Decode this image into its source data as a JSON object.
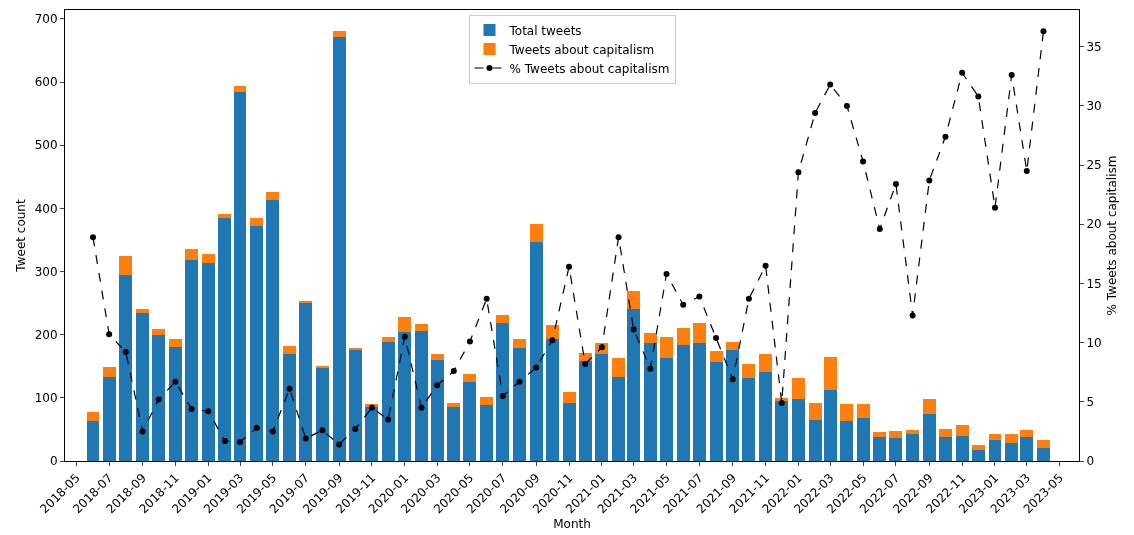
{
  "chart_data": {
    "type": "bar",
    "stacked": true,
    "xlabel": "Month",
    "ylabel": "Tweet count",
    "y2label": "% Tweets about capitalism",
    "x": [
      "2018-06",
      "2018-07",
      "2018-08",
      "2018-09",
      "2018-10",
      "2018-11",
      "2018-12",
      "2019-01",
      "2019-02",
      "2019-03",
      "2019-04",
      "2019-05",
      "2019-06",
      "2019-07",
      "2019-08",
      "2019-09",
      "2019-10",
      "2019-11",
      "2019-12",
      "2020-01",
      "2020-02",
      "2020-03",
      "2020-04",
      "2020-05",
      "2020-06",
      "2020-07",
      "2020-08",
      "2020-09",
      "2020-10",
      "2020-11",
      "2020-12",
      "2021-01",
      "2021-02",
      "2021-03",
      "2021-04",
      "2021-05",
      "2021-06",
      "2021-07",
      "2021-08",
      "2021-09",
      "2021-10",
      "2021-11",
      "2021-12",
      "2022-01",
      "2022-02",
      "2022-03",
      "2022-04",
      "2022-05",
      "2022-06",
      "2022-07",
      "2022-08",
      "2022-09",
      "2022-10",
      "2022-11",
      "2022-12",
      "2023-01",
      "2023-02",
      "2023-03",
      "2023-04"
    ],
    "series": [
      {
        "name": "Total tweets",
        "color": "#1f77b4",
        "values": [
          63,
          133,
          294,
          234,
          199,
          181,
          319,
          313,
          385,
          584,
          372,
          414,
          170,
          250,
          147,
          671,
          175,
          85,
          188,
          204,
          206,
          160,
          85,
          125,
          89,
          218,
          179,
          347,
          193,
          92,
          158,
          169,
          133,
          240,
          187,
          163,
          183,
          187,
          156,
          175,
          132,
          141,
          95,
          98,
          65,
          112,
          63,
          68,
          38,
          36,
          43,
          75,
          38,
          39,
          18,
          33,
          29,
          38,
          20
        ]
      },
      {
        "name": "Tweets about capitalism",
        "color": "#ff7f0e",
        "values": [
          15,
          16,
          31,
          6,
          10,
          12,
          16,
          14,
          6,
          9,
          12,
          12,
          12,
          3,
          3,
          9,
          4,
          5,
          8,
          24,
          11,
          10,
          7,
          13,
          12,
          13,
          14,
          28,
          23,
          17,
          13,
          18,
          30,
          29,
          15,
          33,
          27,
          31,
          18,
          13,
          21,
          28,
          5,
          33,
          27,
          52,
          27,
          22,
          8,
          11,
          6,
          23,
          13,
          18,
          7,
          9,
          13,
          11,
          13
        ]
      },
      {
        "name": "% Tweets about capitalism",
        "type": "line",
        "axis": "y2",
        "color": "#000000",
        "marker": "circle",
        "line_style": "dashed",
        "values": [
          18.9,
          10.7,
          9.2,
          2.5,
          5.2,
          6.7,
          4.4,
          4.2,
          1.7,
          1.6,
          2.8,
          2.5,
          6.1,
          1.9,
          2.6,
          1.4,
          2.7,
          4.5,
          3.5,
          10.5,
          4.5,
          6.4,
          7.6,
          10.1,
          13.7,
          5.5,
          6.7,
          7.9,
          10.2,
          16.4,
          8.2,
          9.6,
          18.9,
          11.1,
          7.8,
          15.8,
          13.2,
          13.9,
          10.4,
          6.9,
          13.7,
          16.5,
          4.9,
          24.4,
          29.4,
          31.8,
          30.0,
          25.3,
          19.6,
          23.4,
          12.3,
          23.7,
          27.4,
          32.8,
          30.8,
          21.4,
          32.6,
          24.5,
          36.3
        ]
      }
    ],
    "xlim": [
      "2018-04-10",
      "2023-06-06"
    ],
    "xticks": [
      "2018-05",
      "2018-07",
      "2018-09",
      "2018-11",
      "2019-01",
      "2019-03",
      "2019-05",
      "2019-07",
      "2019-09",
      "2019-11",
      "2020-01",
      "2020-03",
      "2020-05",
      "2020-07",
      "2020-09",
      "2020-11",
      "2021-01",
      "2021-03",
      "2021-05",
      "2021-07",
      "2021-09",
      "2021-11",
      "2022-01",
      "2022-03",
      "2022-05",
      "2022-07",
      "2022-09",
      "2022-11",
      "2023-01",
      "2023-03",
      "2023-05"
    ],
    "ylim": [
      0,
      714
    ],
    "yticks": [
      0,
      100,
      200,
      300,
      400,
      500,
      600,
      700
    ],
    "y2lim": [
      0,
      38.1
    ],
    "y2ticks": [
      0,
      5,
      10,
      15,
      20,
      25,
      30,
      35
    ],
    "grid": false,
    "legend": "top"
  }
}
